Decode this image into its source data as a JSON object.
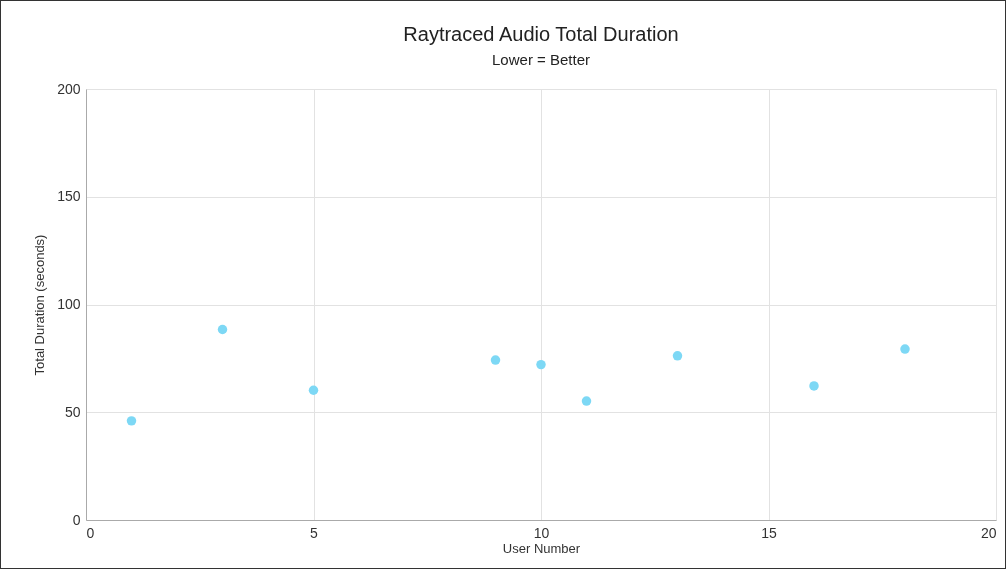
{
  "chart_data": {
    "type": "scatter",
    "title": "Raytraced Audio Total Duration",
    "subtitle": "Lower = Better",
    "xlabel": "User Number",
    "ylabel": "Total Duration (seconds)",
    "x": [
      1,
      3,
      5,
      9,
      10,
      11,
      13,
      16,
      18
    ],
    "values": [
      46,
      88.4,
      60.2,
      74.2,
      72.1,
      55.2,
      76.2,
      62.2,
      79.3
    ],
    "color": "#7dd8f5",
    "marker": "circle",
    "grid": true,
    "xlim": [
      0,
      20
    ],
    "xticks": [
      0,
      5,
      10,
      15,
      20
    ],
    "ylim": [
      0,
      200
    ],
    "yticks": [
      0,
      50,
      100,
      150,
      200
    ]
  }
}
